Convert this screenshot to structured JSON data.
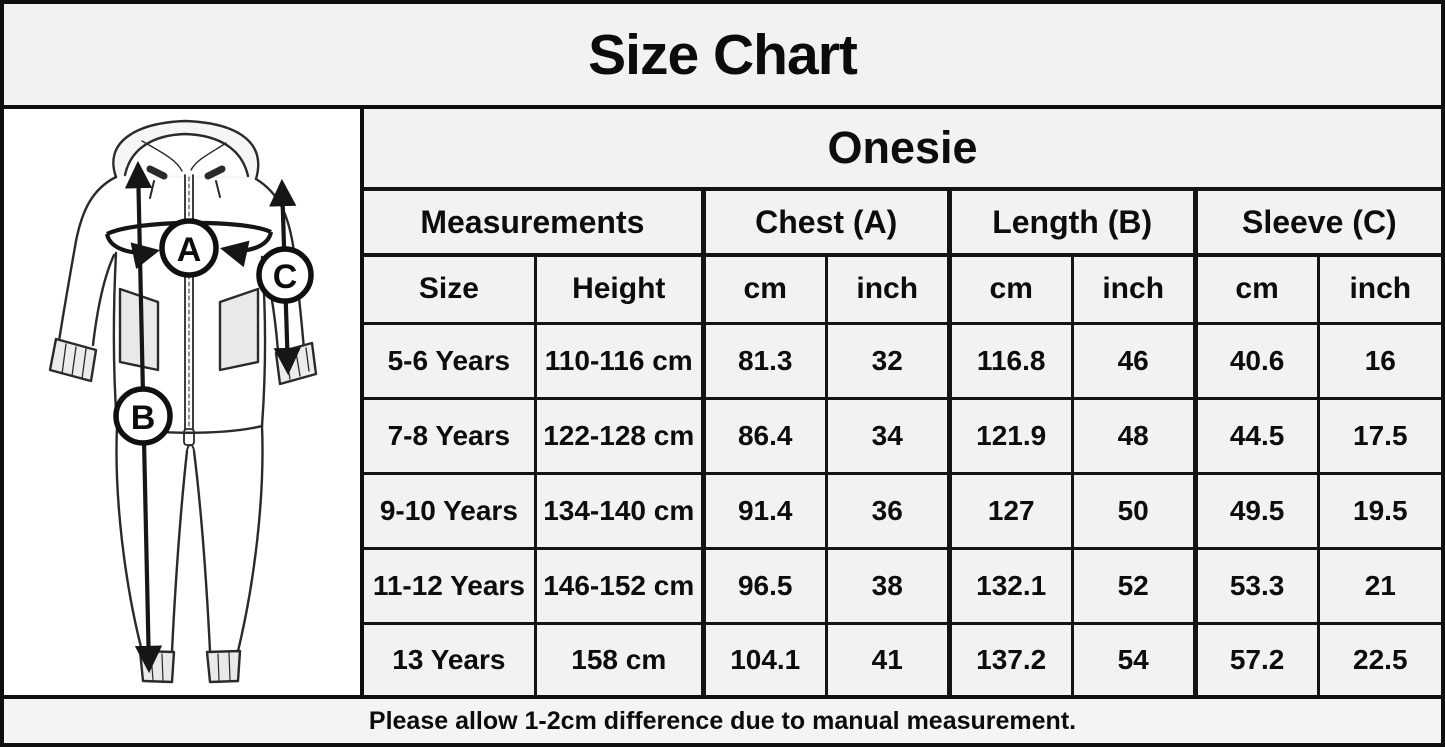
{
  "title": "Size Chart",
  "diagram": {
    "labels": [
      "A",
      "B",
      "C"
    ]
  },
  "table": {
    "product": "Onesie",
    "group_headers": [
      {
        "label": "Measurements"
      },
      {
        "label": "Chest (A)"
      },
      {
        "label": "Length (B)"
      },
      {
        "label": "Sleeve (C)"
      }
    ],
    "sub_headers": [
      "Size",
      "Height",
      "cm",
      "inch",
      "cm",
      "inch",
      "cm",
      "inch"
    ],
    "rows": [
      [
        "5-6 Years",
        "110-116 cm",
        "81.3",
        "32",
        "116.8",
        "46",
        "40.6",
        "16"
      ],
      [
        "7-8 Years",
        "122-128 cm",
        "86.4",
        "34",
        "121.9",
        "48",
        "44.5",
        "17.5"
      ],
      [
        "9-10 Years",
        "134-140 cm",
        "91.4",
        "36",
        "127",
        "50",
        "49.5",
        "19.5"
      ],
      [
        "11-12 Years",
        "146-152 cm",
        "96.5",
        "38",
        "132.1",
        "52",
        "53.3",
        "21"
      ],
      [
        "13 Years",
        "158 cm",
        "104.1",
        "41",
        "137.2",
        "54",
        "57.2",
        "22.5"
      ]
    ]
  },
  "footer_note": "Please allow 1-2cm difference due to manual measurement.",
  "colors": {
    "border": "#141414",
    "background": "#f2f2f2",
    "figure_background": "#ffffff",
    "text": "#0d0d0d"
  }
}
